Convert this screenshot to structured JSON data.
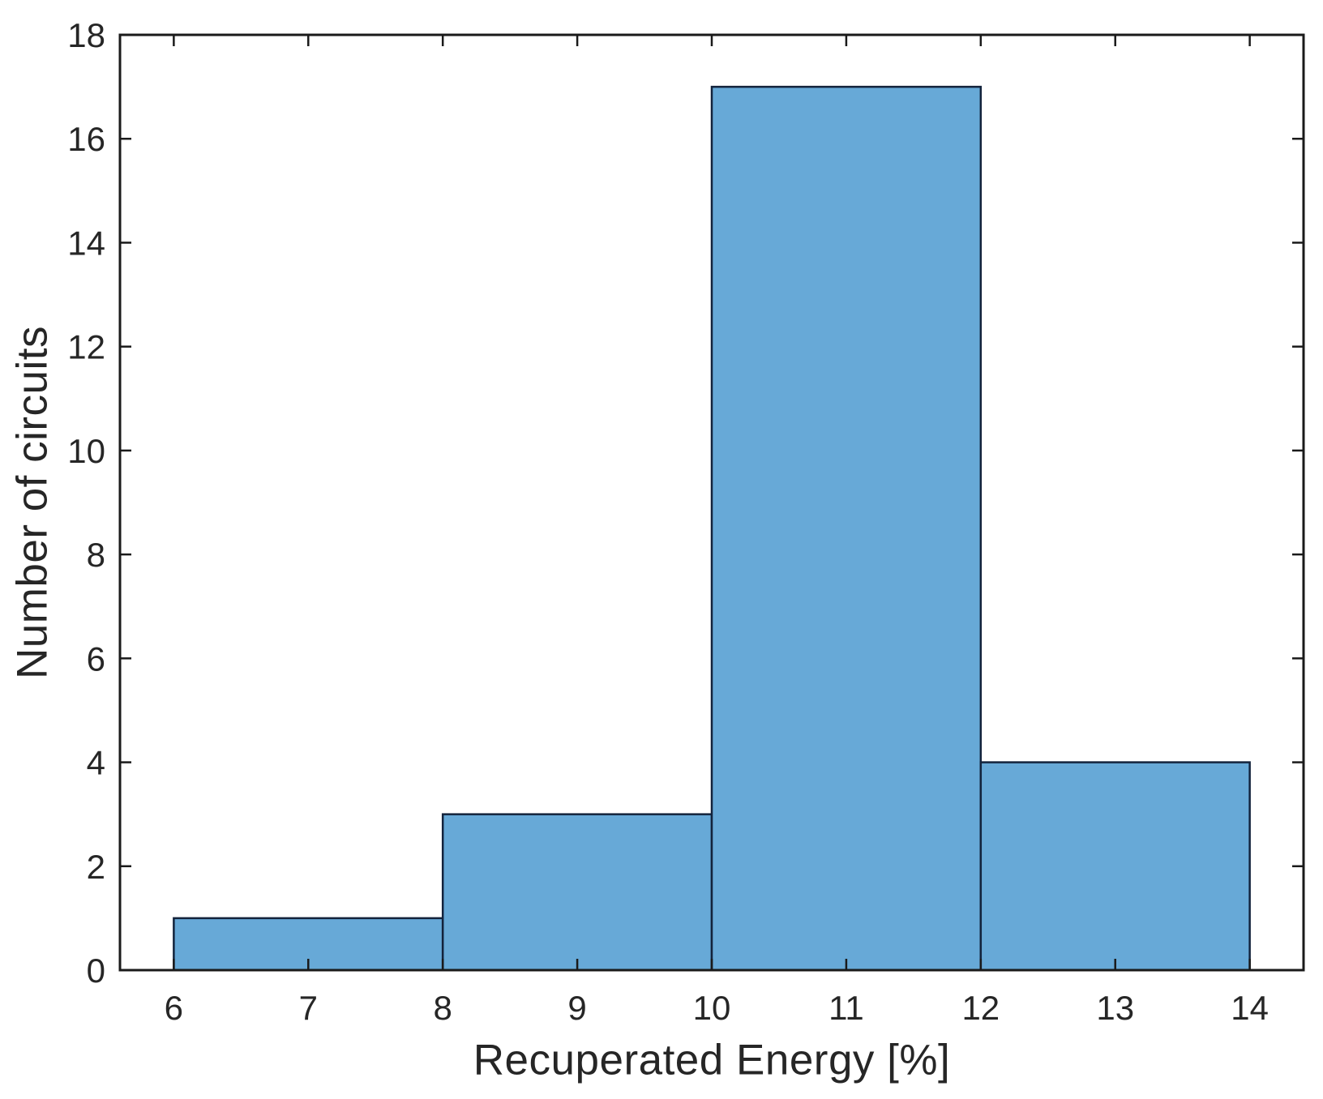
{
  "figure": {
    "background": "#ffffff"
  },
  "chart_data": {
    "type": "bar",
    "subtype": "histogram",
    "title": "",
    "xlabel": "Recuperated Energy [%]",
    "ylabel": "Number of circuits",
    "bin_edges": [
      6,
      8,
      10,
      12,
      14
    ],
    "counts": [
      1,
      3,
      17,
      4
    ],
    "xticks": [
      6,
      7,
      8,
      9,
      10,
      11,
      12,
      13,
      14
    ],
    "yticks": [
      0,
      2,
      4,
      6,
      8,
      10,
      12,
      14,
      16,
      18
    ],
    "xlim": [
      5.6,
      14.4
    ],
    "ylim": [
      0,
      18
    ],
    "grid": false,
    "legend": null,
    "box": true,
    "tick_direction": "in",
    "colors": {
      "bar_fill": "#67A9D7",
      "bar_edge": "#13233C",
      "axis": "#1a1a1a",
      "text": "#262626"
    }
  }
}
